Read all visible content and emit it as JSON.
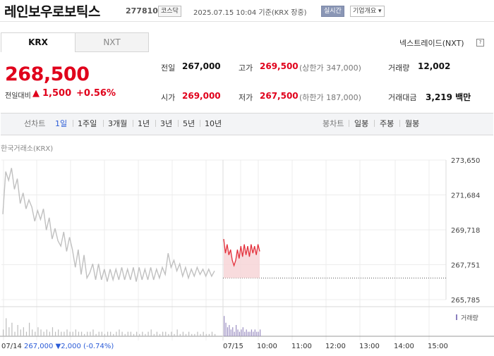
{
  "header": {
    "company": "레인보우로보틱스",
    "code": "277810",
    "market_badge": "코스닥",
    "datetime": "2025.07.15 10:04 기준(KRX 장중)",
    "realtime_label": "실시간",
    "company_info_label": "기업개요 ▾"
  },
  "tabs": {
    "krx": "KRX",
    "nxt": "NXT"
  },
  "nexttrade_label": "넥스트레이드(NXT)",
  "help_icon": "?",
  "price": {
    "current": "268,500",
    "change_label": "전일대비",
    "change_arrow": "▲",
    "change_value": "1,500",
    "change_pct": "+0.56%",
    "color": "#e0001b"
  },
  "stats": {
    "prev_label": "전일",
    "prev": "267,000",
    "high_label": "고가",
    "high": "269,500",
    "upper_limit": "(상한가 347,000)",
    "volume_label": "거래량",
    "volume": "12,002",
    "open_label": "시가",
    "open": "269,000",
    "low_label": "저가",
    "low": "267,500",
    "lower_limit": "(하한가 187,000)",
    "amount_label": "거래대금",
    "amount": "3,219 백만"
  },
  "periods": {
    "line_label": "선차트",
    "line": [
      "1일",
      "1주일",
      "3개월",
      "1년",
      "3년",
      "5년",
      "10년"
    ],
    "candle_label": "봉차트",
    "candle": [
      "일봉",
      "주봉",
      "월봉"
    ]
  },
  "exchange_label": "한국거래소(KRX)",
  "volume_legend": "거래량",
  "bottom": {
    "prev_date": "07/14",
    "prev_price": "267,000",
    "prev_change": "▼2,000 (-0.74%)"
  },
  "chart_data": {
    "type": "line",
    "yticks": [
      "273,650",
      "271,684",
      "269,718",
      "267,751",
      "265,785"
    ],
    "ylim": [
      265785,
      273650
    ],
    "xticks": [
      "07/15",
      "10:00",
      "11:00",
      "12:00",
      "13:00",
      "14:00",
      "15:00"
    ],
    "baseline": 267000,
    "series": [
      {
        "values": [
          270600,
          273000,
          272500,
          273200,
          272000,
          272600,
          271200,
          271800,
          270900,
          271400,
          271000,
          270200,
          270800,
          270300,
          270900,
          269700,
          270400,
          269200,
          269800,
          269100,
          268800,
          269600,
          268500,
          269300,
          268600,
          267600,
          268600,
          267200,
          268300,
          267000,
          267300,
          267800,
          266900,
          267800,
          266900,
          267500,
          266800,
          267500,
          266900,
          267500,
          266900,
          267600,
          266900,
          267500,
          266900,
          267600,
          266800,
          267600,
          266900,
          267500,
          266900,
          267600,
          266900,
          267500,
          267000,
          267600,
          267200,
          268400,
          267600,
          268000,
          267400,
          267800,
          267100,
          267600,
          267000,
          267500,
          267100,
          267600,
          267200,
          267500,
          267100,
          267500,
          267100,
          267400
        ],
        "color": "#c0c0c0"
      },
      {
        "values": [
          269200,
          268400,
          268900,
          268300,
          268600,
          268000,
          267700,
          268000,
          268600,
          268100,
          268800,
          268200,
          268900,
          268300,
          268800,
          268200,
          268900,
          268400,
          268800,
          268300,
          268900,
          268500
        ],
        "color": "#e3303b"
      }
    ],
    "volume_prev": [
      3,
      8,
      4,
      6,
      2,
      5,
      3,
      4,
      2,
      6,
      3,
      2,
      4,
      3,
      2,
      3,
      2,
      4,
      2,
      3,
      2,
      2,
      3,
      2,
      2,
      3,
      2,
      2,
      1,
      2,
      2,
      3,
      1,
      2,
      2,
      1,
      2,
      2,
      1,
      2,
      3,
      2,
      1,
      2,
      2,
      1,
      2,
      1,
      2,
      1,
      2,
      3,
      1,
      2,
      1,
      2,
      2,
      1,
      2,
      1,
      3,
      1,
      2,
      1,
      2,
      1,
      1,
      2,
      1,
      2,
      1,
      1,
      2,
      1
    ],
    "volume_today": [
      9,
      6,
      4,
      5,
      3,
      4,
      2,
      5,
      3,
      2,
      3,
      4,
      2,
      3,
      2,
      2,
      3,
      2,
      3,
      2,
      2,
      3
    ]
  }
}
